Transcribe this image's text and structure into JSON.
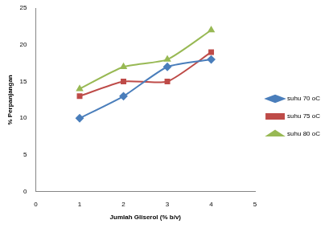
{
  "chart_data": {
    "type": "line",
    "x_label": "Jumlah Gliserol (% b/v)",
    "y_label": "% Perpanjangan",
    "x": [
      1,
      2,
      3,
      4
    ],
    "series": [
      {
        "name": "suhu 70 oC",
        "color": "#4a7ebb",
        "marker": "diamond",
        "values": [
          10,
          13,
          17,
          18
        ]
      },
      {
        "name": "suhu 75 oC",
        "color": "#be4b48",
        "marker": "square",
        "values": [
          13,
          15,
          15,
          19
        ]
      },
      {
        "name": "suhu 80 oC",
        "color": "#98b954",
        "marker": "triangle",
        "values": [
          14,
          17,
          18,
          22
        ]
      }
    ],
    "xlim": [
      0,
      5
    ],
    "xticks": [
      0,
      1,
      2,
      3,
      4,
      5
    ],
    "ylim": [
      0,
      25
    ],
    "yticks": [
      0,
      5,
      10,
      15,
      20,
      25
    ],
    "grid": false,
    "legend": "right"
  }
}
